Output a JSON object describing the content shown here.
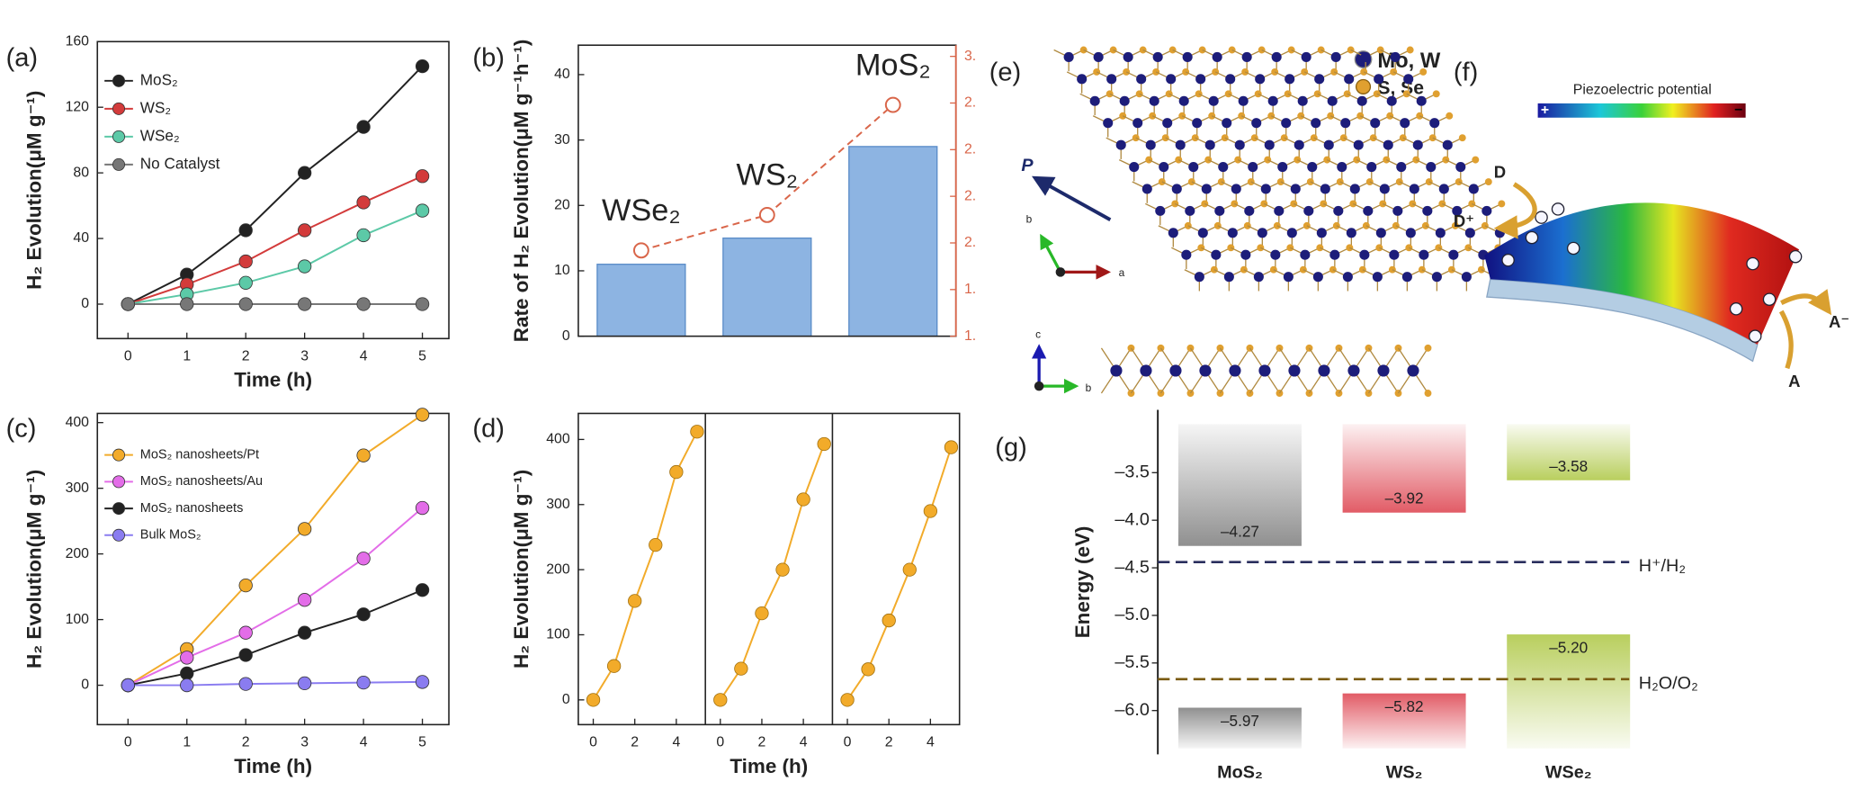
{
  "chart_data": [
    {
      "label": "(a)",
      "type": "line",
      "x": [
        0,
        1,
        2,
        3,
        4,
        5
      ],
      "xlim": [
        -0.52,
        5.45
      ],
      "xticks": [
        0,
        1,
        2,
        3,
        4,
        5
      ],
      "ylim": [
        -21,
        160
      ],
      "yticks": [
        0,
        40,
        80,
        120,
        160
      ],
      "x_label": "Time (h)",
      "y_label": "H₂ Evolution(μM g⁻¹)",
      "legend": "upper left",
      "series": [
        {
          "name": "MoS₂",
          "color": "#222222",
          "values": [
            0,
            18,
            45,
            80,
            108,
            145
          ]
        },
        {
          "name": "WS₂",
          "color": "#d33b3b",
          "values": [
            0,
            12,
            26,
            45,
            62,
            78
          ]
        },
        {
          "name": "WSe₂",
          "color": "#5cc9a7",
          "values": [
            0,
            6,
            13,
            23,
            42,
            57
          ]
        },
        {
          "name": "No Catalyst",
          "color": "#777777",
          "values": [
            0,
            0,
            0,
            0,
            0,
            0
          ]
        }
      ]
    },
    {
      "label": "(b)",
      "type": "bar",
      "categories": [
        "WSe₂",
        "WS₂",
        "MoS₂"
      ],
      "values": [
        11,
        15,
        29
      ],
      "color": "#8db4e2",
      "ylim": [
        0,
        44.5
      ],
      "yticks": [
        0,
        10,
        20,
        30,
        40
      ],
      "y_label": "Rate of H₂ Evolution(μM g⁻¹h⁻¹)",
      "y2lim": [
        1.5,
        3.06
      ],
      "y2ticks": [
        {
          "value": 1.5,
          "label": "1."
        },
        {
          "value": 1.75,
          "label": "1."
        },
        {
          "value": 2.0,
          "label": "2."
        },
        {
          "value": 2.25,
          "label": "2."
        },
        {
          "value": 2.5,
          "label": "2."
        },
        {
          "value": 2.75,
          "label": "2."
        },
        {
          "value": 3.0,
          "label": "3."
        }
      ],
      "series": [
        {
          "axis": "y2",
          "color": "#d9664a",
          "values": [
            1.96,
            2.15,
            2.74
          ]
        }
      ]
    },
    {
      "label": "(c)",
      "type": "line",
      "x": [
        0,
        1,
        2,
        3,
        4,
        5
      ],
      "xlim": [
        -0.52,
        5.45
      ],
      "xticks": [
        0,
        1,
        2,
        3,
        4,
        5
      ],
      "ylim": [
        -60,
        414
      ],
      "yticks": [
        0,
        100,
        200,
        300,
        400
      ],
      "x_label": "Time (h)",
      "y_label": "H₂ Evolution(μM g⁻¹)",
      "legend": "upper left",
      "series": [
        {
          "name": "MoS₂ nanosheets/Pt",
          "color": "#f2ab2a",
          "values": [
            0,
            55,
            152,
            238,
            350,
            412
          ]
        },
        {
          "name": "MoS₂ nanosheets/Au",
          "color": "#e36de8",
          "values": [
            0,
            42,
            80,
            130,
            193,
            270
          ]
        },
        {
          "name": "MoS₂ nanosheets",
          "color": "#222222",
          "values": [
            0,
            18,
            46,
            80,
            108,
            145
          ]
        },
        {
          "name": "Bulk MoS₂",
          "color": "#8a7cf0",
          "values": [
            0,
            0,
            2,
            3,
            4,
            5
          ]
        }
      ]
    },
    {
      "label": "(d)",
      "type": "cycles",
      "x": [
        0,
        1,
        2,
        3,
        4,
        5
      ],
      "xlim": [
        -0.72,
        5.4
      ],
      "xticks": [
        0,
        2,
        4
      ],
      "ylim": [
        -38,
        440
      ],
      "yticks": [
        0,
        100,
        200,
        300,
        400
      ],
      "x_label": "Time (h)",
      "y_label": "H₂ Evolution(μM g⁻¹)",
      "color": "#f2ab2a",
      "cycles": [
        [
          0,
          52,
          152,
          238,
          350,
          412
        ],
        [
          0,
          48,
          133,
          200,
          308,
          393
        ],
        [
          0,
          47,
          122,
          200,
          290,
          388
        ]
      ]
    },
    {
      "label": "(g)",
      "type": "band-edge",
      "categories": [
        "MoS₂",
        "WS₂",
        "WSe₂"
      ],
      "colors": [
        "#8a8a8a",
        "#e0535e",
        "#b5cc55"
      ],
      "ylim": [
        -6.46,
        -2.84
      ],
      "yticks": [
        {
          "value": -3.5,
          "label": "–3.5"
        },
        {
          "value": -4.0,
          "label": "–4.0"
        },
        {
          "value": -4.5,
          "label": "–4.5"
        },
        {
          "value": -5.0,
          "label": "–5.0"
        },
        {
          "value": -5.5,
          "label": "–5.5"
        },
        {
          "value": -6.0,
          "label": "–6.0"
        }
      ],
      "y_label": "Energy (eV)",
      "conduction_band": {
        "values": [
          -4.27,
          -3.92,
          -3.58
        ],
        "value_labels": [
          "–4.27",
          "–3.92",
          "–3.58"
        ]
      },
      "valence_band": {
        "values": [
          -5.97,
          -5.82,
          -5.2
        ],
        "value_labels": [
          "–5.97",
          "–5.82",
          "–5.20"
        ]
      },
      "reference_lines": [
        {
          "value": -4.44,
          "label": "H⁺/H₂",
          "color": "#2a2f5e"
        },
        {
          "value": -5.67,
          "label": "H₂O/O₂",
          "color": "#7a5a10"
        }
      ]
    }
  ],
  "diagram_e": {
    "label": "(e)",
    "legend": [
      "Mo, W",
      "S, Se"
    ],
    "polarization": "P",
    "axes_top": [
      "a",
      "b"
    ],
    "axes_bottom": [
      "c",
      "b"
    ]
  },
  "diagram_f": {
    "label": "(f)",
    "colorbar_title": "Piezoelectric potential",
    "colorbar_ends": [
      "+",
      "−"
    ],
    "donor": "D",
    "donor_oxidized": "D⁺",
    "acceptor_reduced": "A⁻",
    "acceptor": "A"
  }
}
